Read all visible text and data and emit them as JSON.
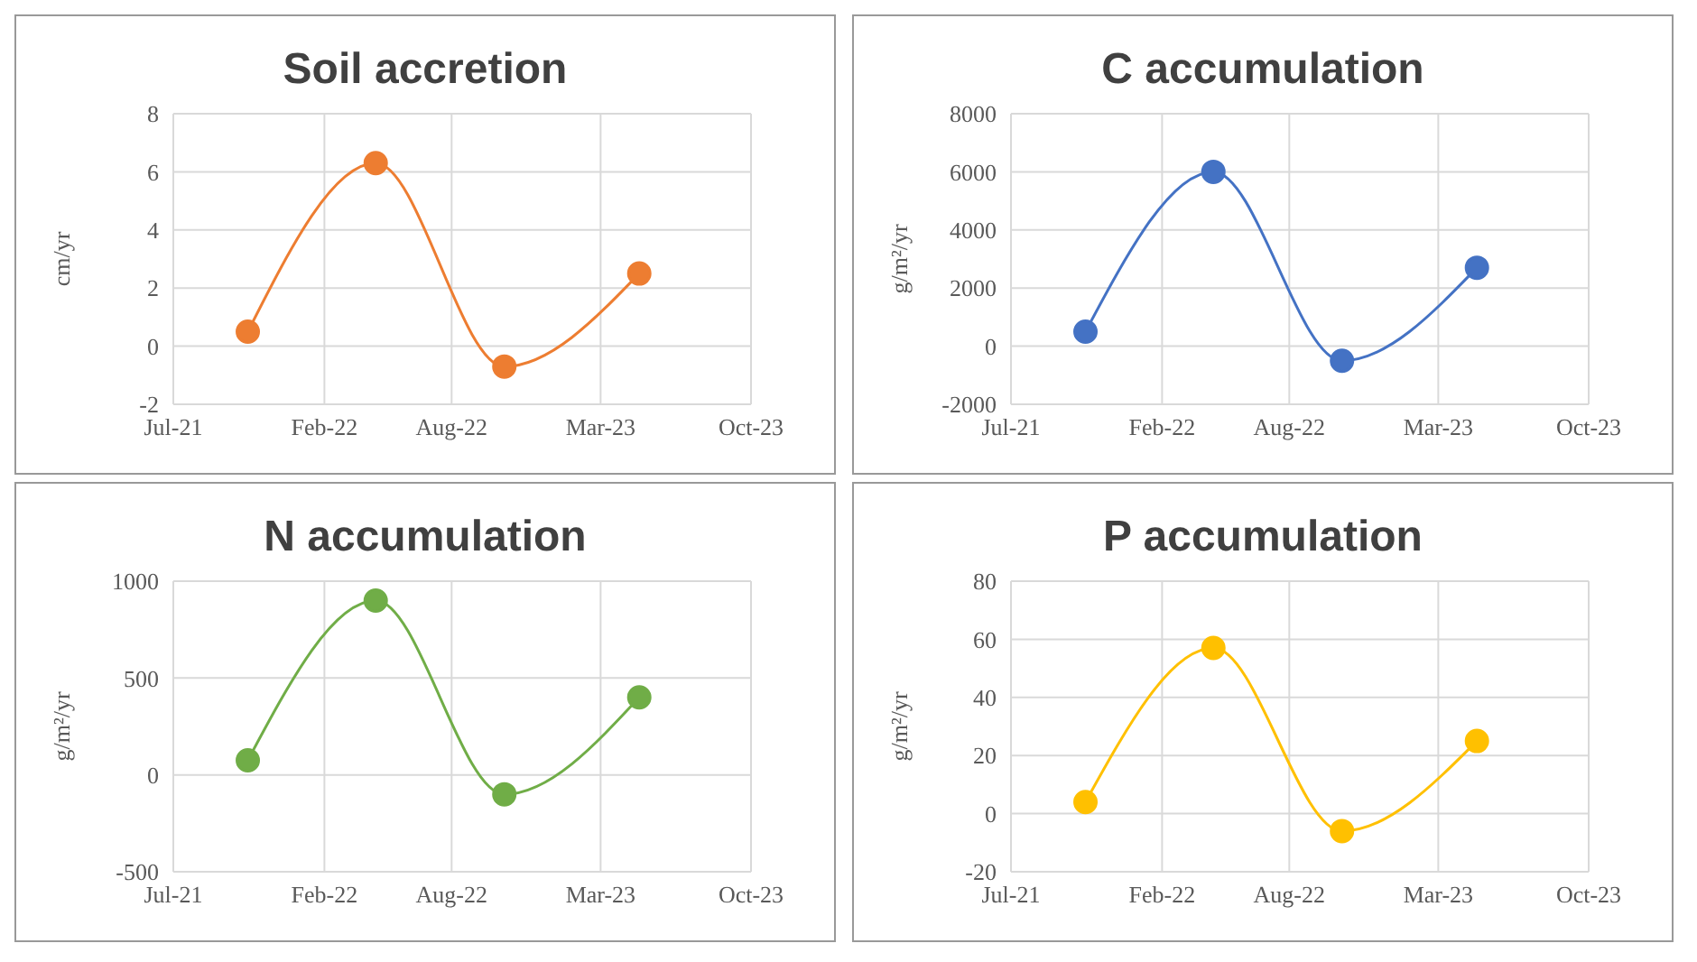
{
  "chart_data": [
    {
      "type": "line",
      "title": "Soil accretion",
      "ylabel": "cm/yr",
      "x": [
        "2021-10-15",
        "2022-04-15",
        "2022-10-15",
        "2023-04-25"
      ],
      "series": [
        {
          "color": "#ed7d31",
          "values": [
            0.5,
            6.3,
            -0.7,
            2.5
          ]
        }
      ],
      "xlim": [
        "2021-07",
        "2023-10"
      ],
      "xticks": [
        {
          "value": "2021-07",
          "label": "Jul-21"
        },
        {
          "value": "2022-02",
          "label": "Feb-22"
        },
        {
          "value": "2022-08",
          "label": "Aug-22"
        },
        {
          "value": "2023-03",
          "label": "Mar-23"
        },
        {
          "value": "2023-10",
          "label": "Oct-23"
        }
      ],
      "ylim": [
        -2,
        8
      ],
      "yticks": [
        -2,
        0,
        2,
        4,
        6,
        8
      ],
      "grid": true,
      "marker": "circle"
    },
    {
      "type": "line",
      "title": "C accumulation",
      "ylabel": "g/m²/yr",
      "x": [
        "2021-10-15",
        "2022-04-15",
        "2022-10-15",
        "2023-04-25"
      ],
      "series": [
        {
          "color": "#4472c4",
          "values": [
            500,
            6000,
            -500,
            2700
          ]
        }
      ],
      "xlim": [
        "2021-07",
        "2023-10"
      ],
      "xticks": [
        {
          "value": "2021-07",
          "label": "Jul-21"
        },
        {
          "value": "2022-02",
          "label": "Feb-22"
        },
        {
          "value": "2022-08",
          "label": "Aug-22"
        },
        {
          "value": "2023-03",
          "label": "Mar-23"
        },
        {
          "value": "2023-10",
          "label": "Oct-23"
        }
      ],
      "ylim": [
        -2000,
        8000
      ],
      "yticks": [
        -2000,
        0,
        2000,
        4000,
        6000,
        8000
      ],
      "grid": true,
      "marker": "circle"
    },
    {
      "type": "line",
      "title": "N accumulation",
      "ylabel": "g/m²/yr",
      "x": [
        "2021-10-15",
        "2022-04-15",
        "2022-10-15",
        "2023-04-25"
      ],
      "series": [
        {
          "color": "#70ad47",
          "values": [
            75,
            900,
            -100,
            400
          ]
        }
      ],
      "xlim": [
        "2021-07",
        "2023-10"
      ],
      "xticks": [
        {
          "value": "2021-07",
          "label": "Jul-21"
        },
        {
          "value": "2022-02",
          "label": "Feb-22"
        },
        {
          "value": "2022-08",
          "label": "Aug-22"
        },
        {
          "value": "2023-03",
          "label": "Mar-23"
        },
        {
          "value": "2023-10",
          "label": "Oct-23"
        }
      ],
      "ylim": [
        -500,
        1000
      ],
      "yticks": [
        -500,
        0,
        500,
        1000
      ],
      "grid": true,
      "marker": "circle"
    },
    {
      "type": "line",
      "title": "P accumulation",
      "ylabel": "g/m²/yr",
      "x": [
        "2021-10-15",
        "2022-04-15",
        "2022-10-15",
        "2023-04-25"
      ],
      "series": [
        {
          "color": "#ffc000",
          "values": [
            4,
            57,
            -6,
            25
          ]
        }
      ],
      "xlim": [
        "2021-07",
        "2023-10"
      ],
      "xticks": [
        {
          "value": "2021-07",
          "label": "Jul-21"
        },
        {
          "value": "2022-02",
          "label": "Feb-22"
        },
        {
          "value": "2022-08",
          "label": "Aug-22"
        },
        {
          "value": "2023-03",
          "label": "Mar-23"
        },
        {
          "value": "2023-10",
          "label": "Oct-23"
        }
      ],
      "ylim": [
        -20,
        80
      ],
      "yticks": [
        -20,
        0,
        20,
        40,
        60,
        80
      ],
      "grid": true,
      "marker": "circle"
    }
  ]
}
